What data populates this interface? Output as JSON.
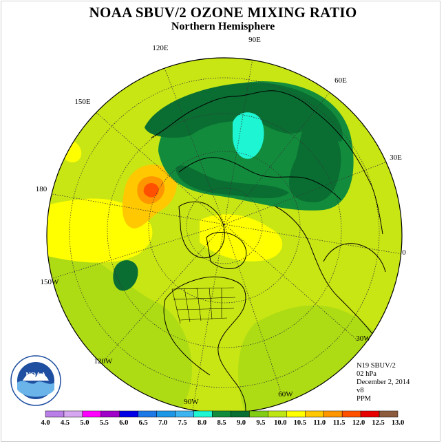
{
  "title": "NOAA SBUV/2 OZONE MIXING RATIO",
  "subtitle": "Northern Hemisphere",
  "longitude_labels": [
    "90E",
    "60E",
    "30E",
    "0",
    "30W",
    "60W",
    "90W",
    "120W",
    "150W",
    "180",
    "150E",
    "120E"
  ],
  "info": {
    "satellite": "N19 SBUV/2",
    "level": "02 hPa",
    "date": "December 2, 2014",
    "version": "v8",
    "units": "PPM"
  },
  "logo_text": "NOAA",
  "colorbar": {
    "labels": [
      "4.0",
      "4.5",
      "5.0",
      "5.5",
      "6.0",
      "6.5",
      "7.0",
      "7.5",
      "8.0",
      "8.5",
      "9.0",
      "9.5",
      "10.0",
      "10.5",
      "11.0",
      "11.5",
      "12.0",
      "12.5",
      "13.0"
    ],
    "colors": [
      "#b97ee8",
      "#d7a6f0",
      "#ff00ff",
      "#a000c8",
      "#0000e6",
      "#1e78e6",
      "#1e96e6",
      "#3cb4f0",
      "#1ef5d2",
      "#128c3c",
      "#0a6e32",
      "#82cd14",
      "#bee614",
      "#ffff00",
      "#ffc800",
      "#ff9600",
      "#ff5000",
      "#e60000",
      "#8c5a3c"
    ]
  },
  "map_fields": {
    "background_color": "#c8e614",
    "regions": [
      {
        "name": "maximum-area",
        "level": "11.5-12.0",
        "color": "#ff5000"
      },
      {
        "name": "high-area",
        "level": "10.5-11.5",
        "color": "#ffc800"
      },
      {
        "name": "low-core",
        "level": "8.0-8.5",
        "color": "#1ef5d2"
      },
      {
        "name": "low-ring",
        "level": "8.5-9.0",
        "color": "#0a6e32"
      }
    ]
  }
}
